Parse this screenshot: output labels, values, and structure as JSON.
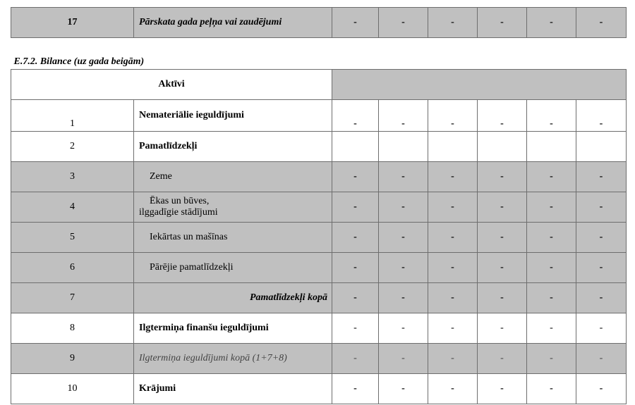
{
  "rows_top": [
    {
      "num": "17",
      "label": "Pārskata gada peļņa vai zaudējumi",
      "values": [
        "-",
        "-",
        "-",
        "-",
        "-",
        "-"
      ]
    }
  ],
  "section_title": "E.7.2. Bilance (uz gada beigām)",
  "header_label": "Aktīvi",
  "rows": [
    {
      "num": "1",
      "label": "Nemateriālie ieguldījumi",
      "values": [
        "-",
        "-",
        "-",
        "-",
        "-",
        "-"
      ]
    },
    {
      "num": "2",
      "label": "Pamatlīdzekļi",
      "values": [
        "",
        "",
        "",
        "",
        "",
        ""
      ]
    },
    {
      "num": "3",
      "label": "Zeme",
      "values": [
        "-",
        "-",
        "-",
        "-",
        "-",
        "-"
      ]
    },
    {
      "num": "4",
      "label": "Ēkas un būves,",
      "label2": "ilggadīgie stādījumi",
      "values": [
        "-",
        "-",
        "-",
        "-",
        "-",
        "-"
      ]
    },
    {
      "num": "5",
      "label": "Iekārtas un mašīnas",
      "values": [
        "-",
        "-",
        "-",
        "-",
        "-",
        "-"
      ]
    },
    {
      "num": "6",
      "label": "Pārējie pamatlīdzekļi",
      "values": [
        "-",
        "-",
        "-",
        "-",
        "-",
        "-"
      ]
    },
    {
      "num": "7",
      "label": "Pamatlīdzekļi kopā",
      "values": [
        "-",
        "-",
        "-",
        "-",
        "-",
        "-"
      ]
    },
    {
      "num": "8",
      "label": "Ilgtermiņa finanšu ieguldījumi",
      "values": [
        "-",
        "-",
        "-",
        "-",
        "-",
        "-"
      ]
    },
    {
      "num": "9",
      "label": "Ilgtermiņa ieguldījumi kopā (1+7+8)",
      "values": [
        "-",
        "-",
        "-",
        "-",
        "-",
        "-"
      ]
    },
    {
      "num": "10",
      "label": "Krājumi",
      "values": [
        "-",
        "-",
        "-",
        "-",
        "-",
        "-"
      ]
    }
  ],
  "colors": {
    "shaded_row": "#c0c0c0",
    "border": "#6e6e6e"
  }
}
